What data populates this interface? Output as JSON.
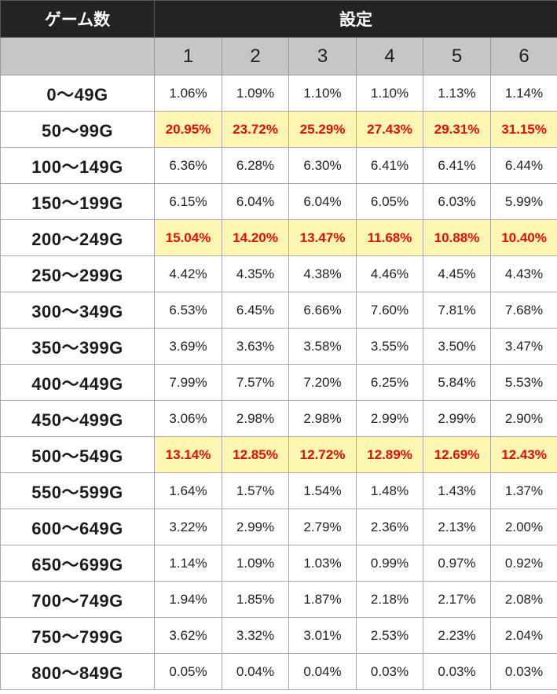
{
  "header": {
    "games_label": "ゲーム数",
    "setting_label": "設定",
    "settings": [
      "1",
      "2",
      "3",
      "4",
      "5",
      "6"
    ]
  },
  "colors": {
    "header_bg": "#232323",
    "subheader_bg": "#c6c6c6",
    "highlight_bg": "#fff6b3",
    "highlight_text": "#e0100a"
  },
  "chart_data": {
    "type": "table",
    "columns": [
      "1",
      "2",
      "3",
      "4",
      "5",
      "6"
    ],
    "rows": [
      {
        "label": "0〜49G",
        "values": [
          "1.06%",
          "1.09%",
          "1.10%",
          "1.10%",
          "1.13%",
          "1.14%"
        ],
        "highlight": false
      },
      {
        "label": "50〜99G",
        "values": [
          "20.95%",
          "23.72%",
          "25.29%",
          "27.43%",
          "29.31%",
          "31.15%"
        ],
        "highlight": true
      },
      {
        "label": "100〜149G",
        "values": [
          "6.36%",
          "6.28%",
          "6.30%",
          "6.41%",
          "6.41%",
          "6.44%"
        ],
        "highlight": false
      },
      {
        "label": "150〜199G",
        "values": [
          "6.15%",
          "6.04%",
          "6.04%",
          "6.05%",
          "6.03%",
          "5.99%"
        ],
        "highlight": false
      },
      {
        "label": "200〜249G",
        "values": [
          "15.04%",
          "14.20%",
          "13.47%",
          "11.68%",
          "10.88%",
          "10.40%"
        ],
        "highlight": true
      },
      {
        "label": "250〜299G",
        "values": [
          "4.42%",
          "4.35%",
          "4.38%",
          "4.46%",
          "4.45%",
          "4.43%"
        ],
        "highlight": false
      },
      {
        "label": "300〜349G",
        "values": [
          "6.53%",
          "6.45%",
          "6.66%",
          "7.60%",
          "7.81%",
          "7.68%"
        ],
        "highlight": false
      },
      {
        "label": "350〜399G",
        "values": [
          "3.69%",
          "3.63%",
          "3.58%",
          "3.55%",
          "3.50%",
          "3.47%"
        ],
        "highlight": false
      },
      {
        "label": "400〜449G",
        "values": [
          "7.99%",
          "7.57%",
          "7.20%",
          "6.25%",
          "5.84%",
          "5.53%"
        ],
        "highlight": false
      },
      {
        "label": "450〜499G",
        "values": [
          "3.06%",
          "2.98%",
          "2.98%",
          "2.99%",
          "2.99%",
          "2.90%"
        ],
        "highlight": false
      },
      {
        "label": "500〜549G",
        "values": [
          "13.14%",
          "12.85%",
          "12.72%",
          "12.89%",
          "12.69%",
          "12.43%"
        ],
        "highlight": true
      },
      {
        "label": "550〜599G",
        "values": [
          "1.64%",
          "1.57%",
          "1.54%",
          "1.48%",
          "1.43%",
          "1.37%"
        ],
        "highlight": false
      },
      {
        "label": "600〜649G",
        "values": [
          "3.22%",
          "2.99%",
          "2.79%",
          "2.36%",
          "2.13%",
          "2.00%"
        ],
        "highlight": false
      },
      {
        "label": "650〜699G",
        "values": [
          "1.14%",
          "1.09%",
          "1.03%",
          "0.99%",
          "0.97%",
          "0.92%"
        ],
        "highlight": false
      },
      {
        "label": "700〜749G",
        "values": [
          "1.94%",
          "1.85%",
          "1.87%",
          "2.18%",
          "2.17%",
          "2.08%"
        ],
        "highlight": false
      },
      {
        "label": "750〜799G",
        "values": [
          "3.62%",
          "3.32%",
          "3.01%",
          "2.53%",
          "2.23%",
          "2.04%"
        ],
        "highlight": false
      },
      {
        "label": "800〜849G",
        "values": [
          "0.05%",
          "0.04%",
          "0.04%",
          "0.03%",
          "0.03%",
          "0.03%"
        ],
        "highlight": false
      }
    ]
  }
}
